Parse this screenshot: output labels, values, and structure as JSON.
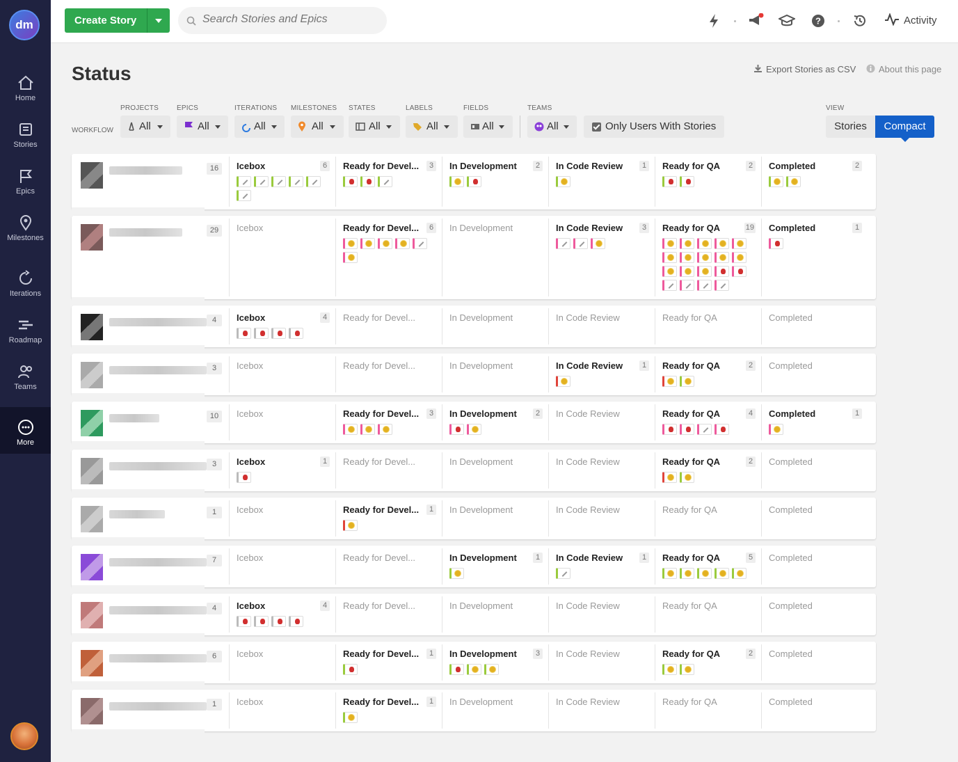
{
  "sidebar": {
    "logo": "dm",
    "items": [
      {
        "label": "Home",
        "icon": "home-icon"
      },
      {
        "label": "Stories",
        "icon": "stories-icon"
      },
      {
        "label": "Epics",
        "icon": "epics-icon"
      },
      {
        "label": "Milestones",
        "icon": "milestones-icon"
      },
      {
        "label": "Iterations",
        "icon": "iterations-icon"
      },
      {
        "label": "Roadmap",
        "icon": "roadmap-icon"
      },
      {
        "label": "Teams",
        "icon": "teams-icon"
      },
      {
        "label": "More",
        "icon": "more-icon"
      }
    ]
  },
  "topbar": {
    "create_label": "Create Story",
    "search_placeholder": "Search Stories and Epics",
    "activity_label": "Activity"
  },
  "page": {
    "title": "Status",
    "export_label": "Export Stories as CSV",
    "about_label": "About this page"
  },
  "filters": {
    "workflow_label": "WORKFLOW",
    "items": [
      {
        "label": "PROJECTS",
        "value": "All"
      },
      {
        "label": "EPICS",
        "value": "All"
      },
      {
        "label": "ITERATIONS",
        "value": "All"
      },
      {
        "label": "MILESTONES",
        "value": "All"
      },
      {
        "label": "STATES",
        "value": "All"
      },
      {
        "label": "LABELS",
        "value": "All"
      },
      {
        "label": "FIELDS",
        "value": "All"
      },
      {
        "label": "TEAMS",
        "value": "All"
      }
    ],
    "only_users_label": "Only Users With Stories",
    "view_label": "VIEW",
    "view_stories": "Stories",
    "view_compact": "Compact"
  },
  "columns": [
    "Icebox",
    "Ready for Devel...",
    "In Development",
    "In Code Review",
    "Ready for QA",
    "Completed"
  ],
  "chip_colors": {
    "green": "#9acb3d",
    "pink": "#ee5a9c",
    "red": "#e0443a",
    "gray": "#bbbbbb"
  },
  "rows": [
    {
      "count": "16",
      "avatar": [
        "#555",
        "#888"
      ],
      "cells": [
        {
          "count": "6",
          "chips": [
            "green-chore",
            "green-chore",
            "green-chore",
            "green-chore",
            "green-chore",
            "green-chore"
          ]
        },
        {
          "count": "3",
          "chips": [
            "green-bug",
            "green-bug",
            "green-chore"
          ]
        },
        {
          "count": "2",
          "chips": [
            "green-feature",
            "green-bug"
          ]
        },
        {
          "count": "1",
          "chips": [
            "green-feature"
          ]
        },
        {
          "count": "2",
          "chips": [
            "green-bug",
            "green-bug"
          ]
        },
        {
          "count": "2",
          "chips": [
            "green-feature",
            "green-feature"
          ]
        }
      ]
    },
    {
      "count": "29",
      "avatar": [
        "#7a5a5a",
        "#b08080"
      ],
      "cells": [
        {
          "count": "",
          "chips": []
        },
        {
          "count": "6",
          "chips": [
            "pink-feature",
            "pink-feature",
            "pink-feature",
            "pink-feature",
            "pink-chore",
            "pink-feature"
          ]
        },
        {
          "count": "",
          "chips": []
        },
        {
          "count": "3",
          "chips": [
            "pink-chore",
            "pink-chore",
            "pink-feature"
          ]
        },
        {
          "count": "19",
          "chips": [
            "pink-feature",
            "pink-feature",
            "pink-feature",
            "pink-feature",
            "pink-feature",
            "pink-feature",
            "pink-feature",
            "pink-feature",
            "pink-feature",
            "pink-feature",
            "pink-feature",
            "pink-feature",
            "pink-feature",
            "pink-bug",
            "pink-bug",
            "pink-chore",
            "pink-chore",
            "pink-chore",
            "pink-chore"
          ]
        },
        {
          "count": "1",
          "chips": [
            "pink-bug"
          ]
        }
      ]
    },
    {
      "count": "4",
      "avatar": [
        "#222",
        "#777"
      ],
      "cells": [
        {
          "count": "4",
          "chips": [
            "gray-bug",
            "gray-bug",
            "gray-bug",
            "gray-bug"
          ]
        },
        {
          "count": "",
          "chips": []
        },
        {
          "count": "",
          "chips": []
        },
        {
          "count": "",
          "chips": []
        },
        {
          "count": "",
          "chips": []
        },
        {
          "count": "",
          "chips": []
        }
      ]
    },
    {
      "count": "3",
      "avatar": [
        "#aaa",
        "#ccc"
      ],
      "cells": [
        {
          "count": "",
          "chips": []
        },
        {
          "count": "",
          "chips": []
        },
        {
          "count": "",
          "chips": []
        },
        {
          "count": "1",
          "chips": [
            "red-feature"
          ]
        },
        {
          "count": "2",
          "chips": [
            "red-feature",
            "green-feature"
          ]
        },
        {
          "count": "",
          "chips": []
        }
      ]
    },
    {
      "count": "10",
      "avatar": [
        "#2e9a5e",
        "#8fd0a8"
      ],
      "cells": [
        {
          "count": "",
          "chips": []
        },
        {
          "count": "3",
          "chips": [
            "pink-feature",
            "pink-feature",
            "pink-feature"
          ]
        },
        {
          "count": "2",
          "chips": [
            "pink-bug",
            "pink-feature"
          ]
        },
        {
          "count": "",
          "chips": []
        },
        {
          "count": "4",
          "chips": [
            "pink-bug",
            "pink-bug",
            "pink-chore",
            "pink-bug"
          ]
        },
        {
          "count": "1",
          "chips": [
            "pink-feature"
          ]
        }
      ]
    },
    {
      "count": "3",
      "avatar": [
        "#999",
        "#bbb"
      ],
      "cells": [
        {
          "count": "1",
          "chips": [
            "gray-bug"
          ]
        },
        {
          "count": "",
          "chips": []
        },
        {
          "count": "",
          "chips": []
        },
        {
          "count": "",
          "chips": []
        },
        {
          "count": "2",
          "chips": [
            "red-feature",
            "green-feature"
          ]
        },
        {
          "count": "",
          "chips": []
        }
      ]
    },
    {
      "count": "1",
      "avatar": [
        "#aaa",
        "#ccc"
      ],
      "cells": [
        {
          "count": "",
          "chips": []
        },
        {
          "count": "1",
          "chips": [
            "red-feature"
          ]
        },
        {
          "count": "",
          "chips": []
        },
        {
          "count": "",
          "chips": []
        },
        {
          "count": "",
          "chips": []
        },
        {
          "count": "",
          "chips": []
        }
      ]
    },
    {
      "count": "7",
      "avatar": [
        "#8a4ad8",
        "#c09ae8"
      ],
      "cells": [
        {
          "count": "",
          "chips": []
        },
        {
          "count": "",
          "chips": []
        },
        {
          "count": "1",
          "chips": [
            "green-feature"
          ]
        },
        {
          "count": "1",
          "chips": [
            "green-chore"
          ]
        },
        {
          "count": "5",
          "chips": [
            "green-feature",
            "green-feature",
            "green-feature",
            "green-feature",
            "green-feature"
          ]
        },
        {
          "count": "",
          "chips": []
        }
      ]
    },
    {
      "count": "4",
      "avatar": [
        "#c07a7a",
        "#e0b0b0"
      ],
      "cells": [
        {
          "count": "4",
          "chips": [
            "gray-bug",
            "gray-bug",
            "gray-bug",
            "gray-bug"
          ]
        },
        {
          "count": "",
          "chips": []
        },
        {
          "count": "",
          "chips": []
        },
        {
          "count": "",
          "chips": []
        },
        {
          "count": "",
          "chips": []
        },
        {
          "count": "",
          "chips": []
        }
      ]
    },
    {
      "count": "6",
      "avatar": [
        "#c0603a",
        "#e0a080"
      ],
      "cells": [
        {
          "count": "",
          "chips": []
        },
        {
          "count": "1",
          "chips": [
            "green-bug"
          ]
        },
        {
          "count": "3",
          "chips": [
            "green-bug",
            "green-feature",
            "green-feature"
          ]
        },
        {
          "count": "",
          "chips": []
        },
        {
          "count": "2",
          "chips": [
            "green-feature",
            "green-feature"
          ]
        },
        {
          "count": "",
          "chips": []
        }
      ]
    },
    {
      "count": "1",
      "avatar": [
        "#8a6a6a",
        "#b09090"
      ],
      "cells": [
        {
          "count": "",
          "chips": []
        },
        {
          "count": "1",
          "chips": [
            "green-feature"
          ]
        },
        {
          "count": "",
          "chips": []
        },
        {
          "count": "",
          "chips": []
        },
        {
          "count": "",
          "chips": []
        },
        {
          "count": "",
          "chips": []
        }
      ]
    }
  ]
}
